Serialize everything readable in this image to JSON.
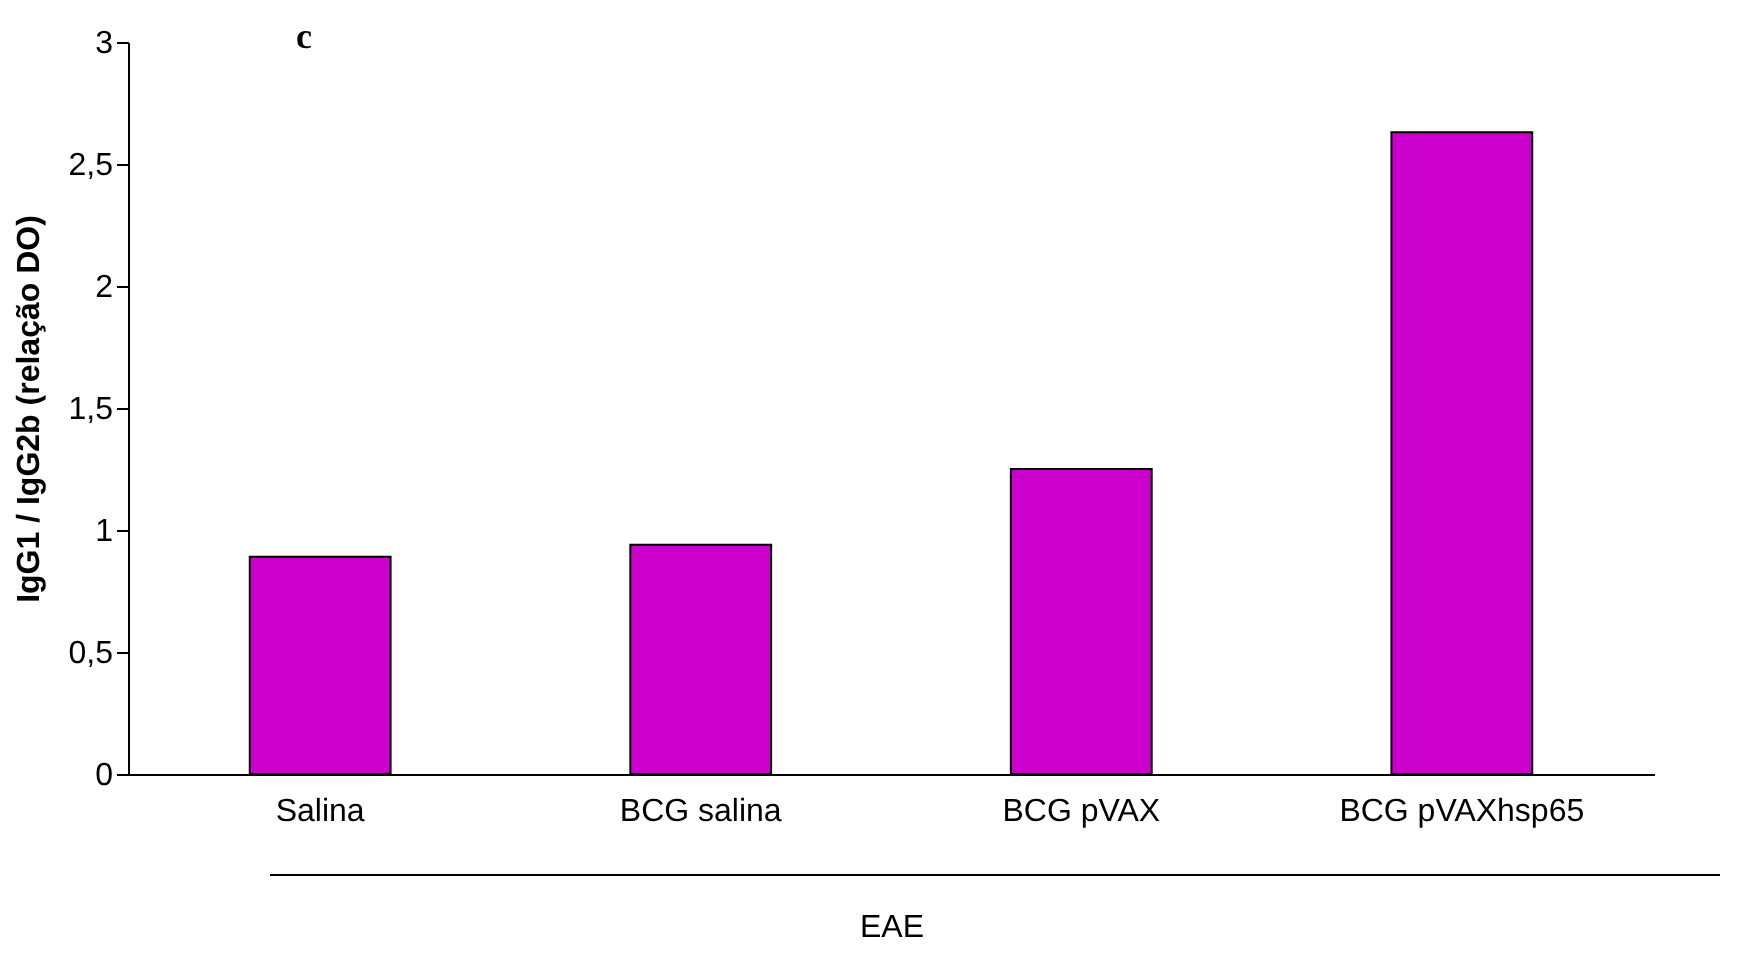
{
  "chart_data": {
    "type": "bar",
    "categories": [
      "Salina",
      "BCG salina",
      "BCG pVAX",
      "BCG pVAXhsp65"
    ],
    "values": [
      0.89,
      0.94,
      1.25,
      2.63
    ],
    "color": "#cc00cc",
    "ylabel": "IgG1 / IgG2b (relação DO)",
    "xlabel": "EAE",
    "annotations": [
      "c"
    ],
    "ylim": [
      0,
      3
    ],
    "yticks": [
      0,
      {
        "value": 0.5,
        "label": "0,5"
      },
      1,
      {
        "value": 1.5,
        "label": "1,5"
      },
      2,
      {
        "value": 2.5,
        "label": "2,5"
      },
      3
    ],
    "grid": false
  }
}
